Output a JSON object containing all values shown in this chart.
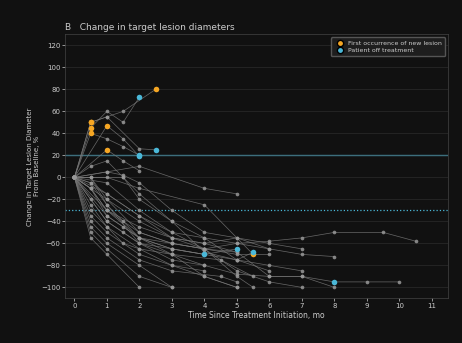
{
  "title": "B   Change in target lesion diameters",
  "xlabel": "Time Since Treatment Initiation, mo",
  "ylabel": "Change in Target Lesion Diameter\nFrom Baseline, %",
  "xlim": [
    -0.3,
    11.5
  ],
  "ylim": [
    -110,
    130
  ],
  "yticks": [
    -100,
    -80,
    -60,
    -40,
    -20,
    0,
    20,
    40,
    60,
    80,
    100,
    120
  ],
  "xticks": [
    0,
    1,
    2,
    3,
    4,
    5,
    6,
    7,
    8,
    9,
    10,
    11
  ],
  "hline_pd": 20,
  "hline_pr": -30,
  "bg_color": "#111111",
  "plot_bg": "#111111",
  "grid_color": "#333333",
  "line_color": "#777777",
  "text_color": "#cccccc",
  "orange_color": "#f5a623",
  "blue_color": "#4ab8d8",
  "gray_color": "#999999",
  "hline_color": "#4ab8d8",
  "patients": [
    {
      "trajectory": [
        [
          0,
          0
        ],
        [
          0.5,
          50
        ],
        [
          1.0,
          55
        ],
        [
          1.5,
          60
        ],
        [
          2.5,
          80
        ]
      ],
      "special": [
        {
          "t": 0.5,
          "v": 50,
          "type": "orange"
        },
        {
          "t": 2.5,
          "v": 80,
          "type": "orange"
        }
      ]
    },
    {
      "trajectory": [
        [
          0,
          0
        ],
        [
          0.5,
          45
        ],
        [
          1.0,
          60
        ],
        [
          1.5,
          50
        ],
        [
          2.0,
          73
        ]
      ],
      "special": [
        {
          "t": 0.5,
          "v": 45,
          "type": "orange"
        },
        {
          "t": 2.0,
          "v": 73,
          "type": "blue"
        }
      ]
    },
    {
      "trajectory": [
        [
          0,
          0
        ],
        [
          0.5,
          50
        ],
        [
          1.0,
          55
        ],
        [
          2.0,
          26
        ],
        [
          2.5,
          25
        ]
      ],
      "special": [
        {
          "t": 0.5,
          "v": 50,
          "type": "orange"
        },
        {
          "t": 2.5,
          "v": 25,
          "type": "blue"
        }
      ]
    },
    {
      "trajectory": [
        [
          0,
          0
        ],
        [
          0.5,
          40
        ],
        [
          1.0,
          35
        ],
        [
          1.5,
          28
        ],
        [
          2.0,
          20
        ]
      ],
      "special": [
        {
          "t": 0.5,
          "v": 40,
          "type": "orange"
        },
        {
          "t": 2.0,
          "v": 20,
          "type": "blue"
        }
      ]
    },
    {
      "trajectory": [
        [
          0,
          0
        ],
        [
          1.0,
          47
        ],
        [
          1.5,
          35
        ],
        [
          2.0,
          19
        ]
      ],
      "special": [
        {
          "t": 1.0,
          "v": 47,
          "type": "orange"
        },
        {
          "t": 2.0,
          "v": 19,
          "type": "blue"
        }
      ]
    },
    {
      "trajectory": [
        [
          0,
          0
        ],
        [
          1.0,
          25
        ],
        [
          1.5,
          15
        ],
        [
          2.0,
          6
        ]
      ],
      "special": [
        {
          "t": 1.0,
          "v": 25,
          "type": "orange"
        }
      ]
    },
    {
      "trajectory": [
        [
          0,
          0
        ],
        [
          1.0,
          5
        ],
        [
          2.0,
          10
        ],
        [
          4.0,
          -10
        ],
        [
          5.0,
          -15
        ]
      ],
      "special": []
    },
    {
      "trajectory": [
        [
          0,
          0
        ],
        [
          1.0,
          0
        ],
        [
          2.0,
          -10
        ],
        [
          4.0,
          -25
        ],
        [
          5.5,
          -70
        ]
      ],
      "special": [
        {
          "t": 5.5,
          "v": -70,
          "type": "orange"
        }
      ]
    },
    {
      "trajectory": [
        [
          0,
          0
        ],
        [
          1.0,
          -5
        ],
        [
          2.0,
          -30
        ],
        [
          3.0,
          -50
        ],
        [
          4.0,
          -65
        ],
        [
          5.0,
          -70
        ],
        [
          6.0,
          -70
        ]
      ],
      "special": []
    },
    {
      "trajectory": [
        [
          0,
          0
        ],
        [
          0.5,
          -10
        ],
        [
          1.0,
          -35
        ],
        [
          1.5,
          -45
        ],
        [
          2.0,
          -55
        ],
        [
          3.0,
          -60
        ],
        [
          4.0,
          -65
        ],
        [
          5.0,
          -68
        ]
      ],
      "special": []
    },
    {
      "trajectory": [
        [
          0,
          0
        ],
        [
          0.5,
          -20
        ],
        [
          1.0,
          -40
        ],
        [
          1.5,
          -50
        ],
        [
          2.0,
          -60
        ],
        [
          3.0,
          -65
        ],
        [
          4.0,
          -70
        ],
        [
          5.0,
          -75
        ],
        [
          6.0,
          -85
        ]
      ],
      "special": []
    },
    {
      "trajectory": [
        [
          0,
          0
        ],
        [
          0.5,
          -30
        ],
        [
          1.0,
          -45
        ],
        [
          1.5,
          -60
        ],
        [
          2.0,
          -65
        ],
        [
          3.0,
          -70
        ],
        [
          4.5,
          -75
        ],
        [
          5.5,
          -90
        ]
      ],
      "special": []
    },
    {
      "trajectory": [
        [
          0,
          0
        ],
        [
          0.5,
          -35
        ],
        [
          1.0,
          -50
        ],
        [
          2.0,
          -70
        ],
        [
          3.0,
          -80
        ],
        [
          4.0,
          -85
        ]
      ],
      "special": []
    },
    {
      "trajectory": [
        [
          0,
          0
        ],
        [
          0.5,
          -40
        ],
        [
          1.0,
          -55
        ],
        [
          2.0,
          -75
        ],
        [
          3.0,
          -85
        ],
        [
          4.5,
          -90
        ],
        [
          5.0,
          -95
        ]
      ],
      "special": []
    },
    {
      "trajectory": [
        [
          0,
          0
        ],
        [
          0.5,
          -45
        ],
        [
          1.0,
          -60
        ],
        [
          2.0,
          -80
        ],
        [
          3.0,
          -100
        ]
      ],
      "special": []
    },
    {
      "trajectory": [
        [
          0,
          0
        ],
        [
          0.5,
          -50
        ],
        [
          1.0,
          -65
        ],
        [
          2.0,
          -90
        ],
        [
          3.0,
          -100
        ]
      ],
      "special": []
    },
    {
      "trajectory": [
        [
          0,
          0
        ],
        [
          0.5,
          -55
        ],
        [
          1.0,
          -70
        ],
        [
          2.0,
          -100
        ]
      ],
      "special": []
    },
    {
      "trajectory": [
        [
          0,
          0
        ],
        [
          1.0,
          -40
        ],
        [
          2.0,
          -60
        ],
        [
          3.0,
          -75
        ],
        [
          4.0,
          -80
        ],
        [
          5.0,
          -88
        ],
        [
          6.0,
          -90
        ],
        [
          7.0,
          -90
        ],
        [
          8.0,
          -95
        ],
        [
          9.0,
          -95
        ],
        [
          10.0,
          -95
        ]
      ],
      "special": [
        {
          "t": 8.0,
          "v": -95,
          "type": "blue"
        }
      ]
    },
    {
      "trajectory": [
        [
          0,
          0
        ],
        [
          1.0,
          -30
        ],
        [
          2.0,
          -50
        ],
        [
          3.0,
          -60
        ],
        [
          4.0,
          -65
        ],
        [
          5.0,
          -60
        ],
        [
          6.0,
          -58
        ],
        [
          7.0,
          -55
        ],
        [
          8.0,
          -50
        ],
        [
          9.5,
          -50
        ],
        [
          10.5,
          -58
        ]
      ],
      "special": []
    },
    {
      "trajectory": [
        [
          0,
          0
        ],
        [
          1.0,
          -35
        ],
        [
          2.0,
          -55
        ],
        [
          3.0,
          -65
        ],
        [
          4.0,
          -70
        ],
        [
          5.0,
          -65
        ]
      ],
      "special": [
        {
          "t": 5.0,
          "v": -65,
          "type": "blue"
        }
      ]
    },
    {
      "trajectory": [
        [
          0,
          0
        ],
        [
          1.0,
          -20
        ],
        [
          2.0,
          -40
        ],
        [
          3.0,
          -55
        ],
        [
          4.0,
          -60
        ],
        [
          5.0,
          -68
        ],
        [
          6.0,
          -90
        ],
        [
          7.0,
          -90
        ],
        [
          8.0,
          -100
        ]
      ],
      "special": []
    },
    {
      "trajectory": [
        [
          0,
          0
        ],
        [
          1.0,
          -15
        ],
        [
          2.0,
          -35
        ],
        [
          3.0,
          -50
        ],
        [
          4.0,
          -55
        ],
        [
          5.0,
          -75
        ],
        [
          6.0,
          -80
        ],
        [
          7.0,
          -85
        ]
      ],
      "special": []
    },
    {
      "trajectory": [
        [
          0,
          0
        ],
        [
          0.5,
          -5
        ],
        [
          1.0,
          -15
        ],
        [
          2.0,
          -35
        ],
        [
          3.0,
          -55
        ],
        [
          4.0,
          -65
        ],
        [
          5.0,
          -85
        ],
        [
          6.0,
          -95
        ],
        [
          7.0,
          -100
        ]
      ],
      "special": []
    },
    {
      "trajectory": [
        [
          0,
          0
        ],
        [
          0.5,
          0
        ],
        [
          1.0,
          -25
        ],
        [
          2.0,
          -60
        ],
        [
          3.0,
          -70
        ],
        [
          4.0,
          -90
        ],
        [
          5.0,
          -100
        ]
      ],
      "special": []
    },
    {
      "trajectory": [
        [
          0,
          0
        ],
        [
          0.5,
          -10
        ],
        [
          1.0,
          -30
        ],
        [
          2.0,
          -55
        ],
        [
          3.0,
          -70
        ],
        [
          4.0,
          -80
        ]
      ],
      "special": []
    },
    {
      "trajectory": [
        [
          0,
          0
        ],
        [
          1.5,
          0
        ],
        [
          2.0,
          -15
        ],
        [
          3.0,
          -40
        ],
        [
          4.0,
          -68
        ],
        [
          5.0,
          -75
        ],
        [
          5.5,
          -68
        ]
      ],
      "special": [
        {
          "t": 5.5,
          "v": -68,
          "type": "blue"
        }
      ]
    },
    {
      "trajectory": [
        [
          0,
          0
        ],
        [
          1.0,
          5
        ],
        [
          1.5,
          2
        ],
        [
          2.0,
          -5
        ],
        [
          3.0,
          -30
        ],
        [
          4.0,
          -50
        ],
        [
          5.0,
          -55
        ],
        [
          6.0,
          -60
        ],
        [
          7.0,
          -65
        ]
      ],
      "special": []
    },
    {
      "trajectory": [
        [
          0,
          0
        ],
        [
          0.5,
          -10
        ],
        [
          1.0,
          -30
        ],
        [
          2.0,
          -45
        ],
        [
          3.0,
          -55
        ],
        [
          4.0,
          -60
        ],
        [
          5.0,
          -55
        ],
        [
          6.0,
          -65
        ],
        [
          7.0,
          -70
        ],
        [
          8.0,
          -72
        ]
      ],
      "special": []
    },
    {
      "trajectory": [
        [
          0,
          0
        ],
        [
          0.5,
          0
        ],
        [
          1.0,
          -20
        ],
        [
          2.0,
          -50
        ],
        [
          3.0,
          -60
        ],
        [
          4.0,
          -65
        ],
        [
          5.0,
          -90
        ],
        [
          5.5,
          -100
        ]
      ],
      "special": []
    },
    {
      "trajectory": [
        [
          0,
          0
        ],
        [
          0.5,
          -5
        ],
        [
          1.0,
          -25
        ],
        [
          1.5,
          -40
        ],
        [
          2.0,
          -55
        ],
        [
          3.0,
          -65
        ],
        [
          4.0,
          -70
        ]
      ],
      "special": [
        {
          "t": 4.0,
          "v": -70,
          "type": "blue"
        }
      ]
    },
    {
      "trajectory": [
        [
          0,
          0
        ],
        [
          0.5,
          10
        ],
        [
          1.0,
          15
        ],
        [
          1.5,
          0
        ],
        [
          2.0,
          -20
        ],
        [
          3.0,
          -40
        ],
        [
          4.0,
          -55
        ],
        [
          5.0,
          -60
        ],
        [
          6.0,
          -65
        ]
      ],
      "special": []
    },
    {
      "trajectory": [
        [
          0,
          0
        ],
        [
          0.5,
          -25
        ],
        [
          1.0,
          -45
        ],
        [
          2.0,
          -65
        ],
        [
          3.0,
          -80
        ],
        [
          4.0,
          -90
        ],
        [
          5.0,
          -100
        ]
      ],
      "special": []
    }
  ],
  "legend_orange": "First occurrence of new lesion",
  "legend_blue": "Patient off treatment"
}
